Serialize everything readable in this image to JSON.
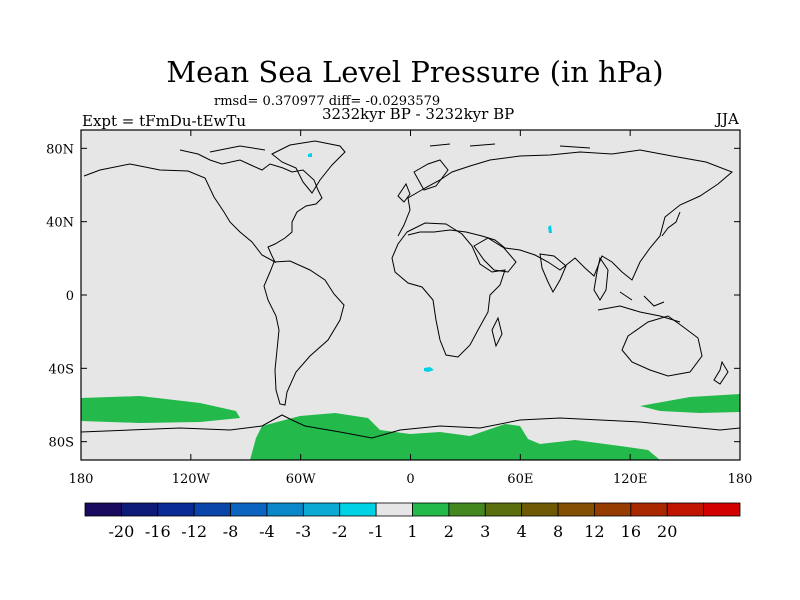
{
  "title": "Mean Sea Level Pressure (in hPa)",
  "stats": "rmsd= 0.370977  diff= -0.0293579",
  "experiment": "Expt = tFmDu-tEwTu",
  "period": "3232kyr BP - 3232kyr BP",
  "season": "JJA",
  "map": {
    "background_color": "#e6e6e6",
    "coast_color": "#000000",
    "lat_ticks": [
      {
        "value": 80,
        "label": "80N"
      },
      {
        "value": 40,
        "label": "40N"
      },
      {
        "value": 0,
        "label": "0"
      },
      {
        "value": -40,
        "label": "40S"
      },
      {
        "value": -80,
        "label": "80S"
      }
    ],
    "lon_ticks": [
      {
        "value": -180,
        "label": "180"
      },
      {
        "value": -120,
        "label": "120W"
      },
      {
        "value": -60,
        "label": "60W"
      },
      {
        "value": 0,
        "label": "0"
      },
      {
        "value": 60,
        "label": "60E"
      },
      {
        "value": 120,
        "label": "120E"
      },
      {
        "value": 180,
        "label": "180"
      }
    ]
  },
  "colorbar": {
    "colors": [
      "#1a0a5e",
      "#0d1a78",
      "#0a2a96",
      "#0a46aa",
      "#0a64c0",
      "#0a87c8",
      "#0aaad2",
      "#00d2e6",
      "#e6e6e6",
      "#23b94b",
      "#43871e",
      "#5a6e0f",
      "#6e5a05",
      "#825000",
      "#963c00",
      "#aa2800",
      "#be1400",
      "#d20000"
    ],
    "labels": [
      "-20",
      "-16",
      "-12",
      "-8",
      "-4",
      "-3",
      "-2",
      "-1",
      "1",
      "2",
      "3",
      "4",
      "8",
      "12",
      "16",
      "20"
    ]
  }
}
